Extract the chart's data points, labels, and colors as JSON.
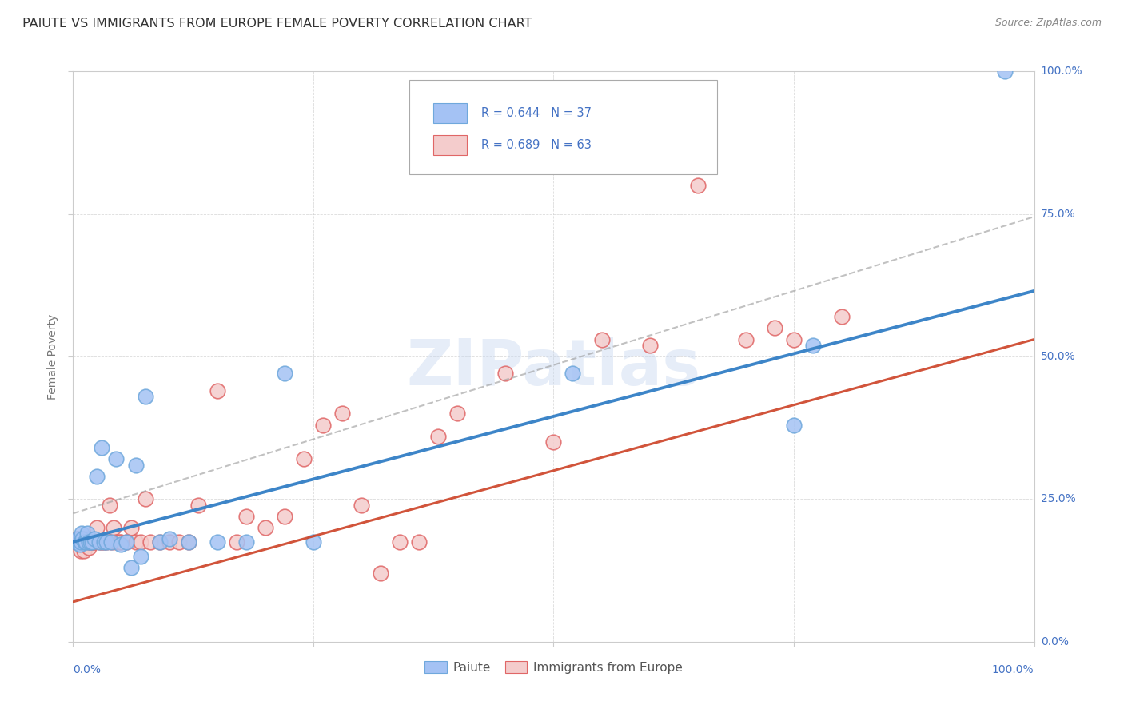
{
  "title": "PAIUTE VS IMMIGRANTS FROM EUROPE FEMALE POVERTY CORRELATION CHART",
  "source": "Source: ZipAtlas.com",
  "ylabel": "Female Poverty",
  "watermark": "ZIPatlas",
  "legend_r_blue": "R = 0.644",
  "legend_n_blue": "N = 37",
  "legend_r_pink": "R = 0.689",
  "legend_n_pink": "N = 63",
  "ytick_labels": [
    "0.0%",
    "25.0%",
    "50.0%",
    "75.0%",
    "100.0%"
  ],
  "ytick_values": [
    0.0,
    0.25,
    0.5,
    0.75,
    1.0
  ],
  "blue_color": "#a4c2f4",
  "blue_edge_color": "#6fa8dc",
  "pink_color": "#f4cccc",
  "pink_edge_color": "#e06666",
  "blue_line_color": "#3d85c8",
  "pink_line_color": "#cc4125",
  "axis_color": "#cccccc",
  "grid_color": "#cccccc",
  "label_color": "#4472c4",
  "source_color": "#888888",
  "title_color": "#333333",
  "ylabel_color": "#777777",
  "paiute_x": [
    0.003,
    0.005,
    0.007,
    0.008,
    0.009,
    0.01,
    0.012,
    0.013,
    0.015,
    0.016,
    0.018,
    0.02,
    0.022,
    0.025,
    0.027,
    0.03,
    0.032,
    0.035,
    0.04,
    0.045,
    0.05,
    0.055,
    0.06,
    0.065,
    0.07,
    0.075,
    0.09,
    0.1,
    0.12,
    0.15,
    0.18,
    0.22,
    0.25,
    0.52,
    0.75,
    0.77,
    0.97
  ],
  "paiute_y": [
    0.175,
    0.18,
    0.17,
    0.175,
    0.19,
    0.18,
    0.175,
    0.175,
    0.19,
    0.175,
    0.175,
    0.175,
    0.18,
    0.29,
    0.175,
    0.34,
    0.175,
    0.175,
    0.175,
    0.32,
    0.17,
    0.175,
    0.13,
    0.31,
    0.15,
    0.43,
    0.175,
    0.18,
    0.175,
    0.175,
    0.175,
    0.47,
    0.175,
    0.47,
    0.38,
    0.52,
    1.0
  ],
  "europe_x": [
    0.003,
    0.005,
    0.006,
    0.008,
    0.009,
    0.01,
    0.011,
    0.012,
    0.013,
    0.014,
    0.015,
    0.016,
    0.017,
    0.018,
    0.019,
    0.02,
    0.021,
    0.022,
    0.025,
    0.027,
    0.03,
    0.032,
    0.035,
    0.038,
    0.04,
    0.042,
    0.045,
    0.048,
    0.05,
    0.055,
    0.06,
    0.065,
    0.07,
    0.075,
    0.08,
    0.09,
    0.1,
    0.11,
    0.12,
    0.13,
    0.15,
    0.17,
    0.18,
    0.2,
    0.22,
    0.24,
    0.26,
    0.28,
    0.3,
    0.32,
    0.34,
    0.36,
    0.38,
    0.4,
    0.45,
    0.5,
    0.55,
    0.6,
    0.65,
    0.7,
    0.73,
    0.75,
    0.8
  ],
  "europe_y": [
    0.175,
    0.18,
    0.175,
    0.16,
    0.175,
    0.175,
    0.16,
    0.175,
    0.18,
    0.175,
    0.175,
    0.165,
    0.175,
    0.175,
    0.175,
    0.175,
    0.175,
    0.175,
    0.2,
    0.175,
    0.175,
    0.175,
    0.175,
    0.24,
    0.175,
    0.2,
    0.175,
    0.175,
    0.175,
    0.175,
    0.2,
    0.175,
    0.175,
    0.25,
    0.175,
    0.175,
    0.175,
    0.175,
    0.175,
    0.24,
    0.44,
    0.175,
    0.22,
    0.2,
    0.22,
    0.32,
    0.38,
    0.4,
    0.24,
    0.12,
    0.175,
    0.175,
    0.36,
    0.4,
    0.47,
    0.35,
    0.53,
    0.52,
    0.8,
    0.53,
    0.55,
    0.53,
    0.57
  ]
}
